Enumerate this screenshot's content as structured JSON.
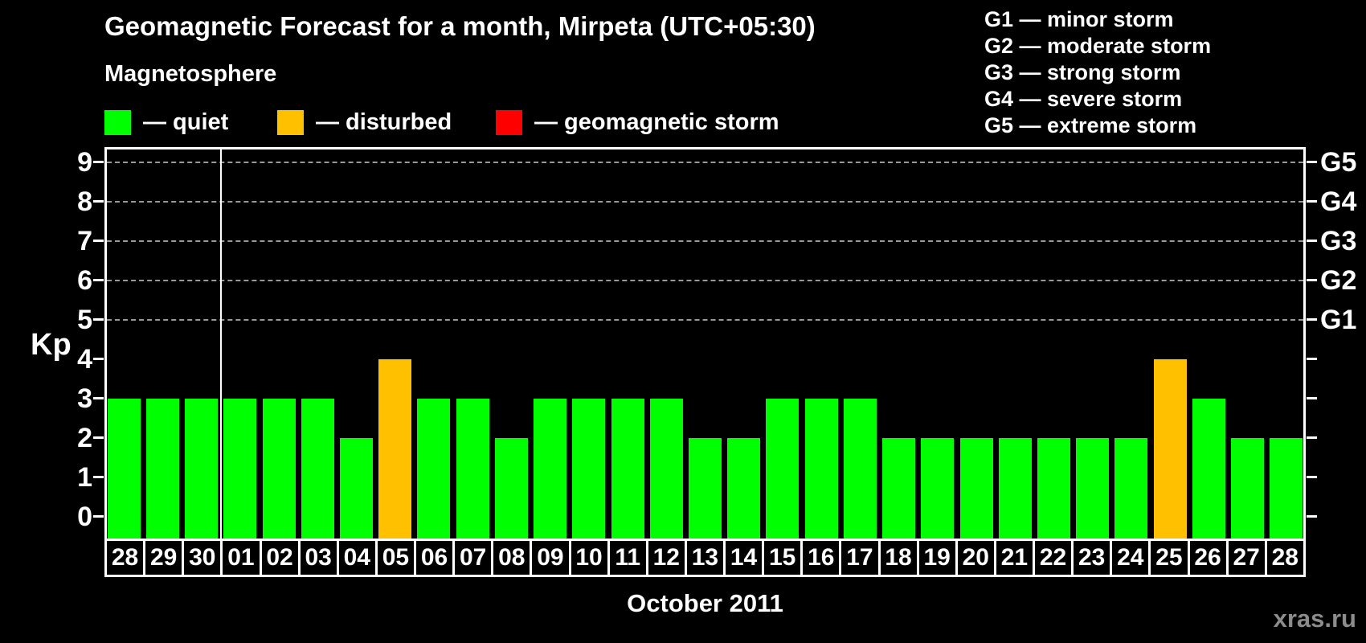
{
  "header": {
    "title": "Geomagnetic Forecast for a month, Mirpeta (UTC+05:30)",
    "subtitle": "Magnetosphere"
  },
  "legend": {
    "items": [
      {
        "name": "quiet",
        "label": "— quiet",
        "color": "#00ff00"
      },
      {
        "name": "disturbed",
        "label": "— disturbed",
        "color": "#ffc000"
      },
      {
        "name": "storm",
        "label": "— geomagnetic storm",
        "color": "#ff0000"
      }
    ]
  },
  "g_scale_legend": [
    "G1 — minor storm",
    "G2 — moderate storm",
    "G3 — strong storm",
    "G4 — severe storm",
    "G5 — extreme storm"
  ],
  "watermark": "xras.ru",
  "chart_data": {
    "type": "bar",
    "title": "Geomagnetic Forecast for a month, Mirpeta (UTC+05:30)",
    "xlabel": "October 2011",
    "ylabel": "Kp",
    "ylim": [
      0,
      9
    ],
    "yticks": [
      0,
      1,
      2,
      3,
      4,
      5,
      6,
      7,
      8,
      9
    ],
    "gridlines_at_kp": [
      5,
      6,
      7,
      8,
      9
    ],
    "grid": "dashed",
    "right_axis_labels": [
      {
        "kp": 5,
        "label": "G1"
      },
      {
        "kp": 6,
        "label": "G2"
      },
      {
        "kp": 7,
        "label": "G3"
      },
      {
        "kp": 8,
        "label": "G4"
      },
      {
        "kp": 9,
        "label": "G5"
      }
    ],
    "month_separator_after_index": 3,
    "categories": [
      "28",
      "29",
      "30",
      "01",
      "02",
      "03",
      "04",
      "05",
      "06",
      "07",
      "08",
      "09",
      "10",
      "11",
      "12",
      "13",
      "14",
      "15",
      "16",
      "17",
      "18",
      "19",
      "20",
      "21",
      "22",
      "23",
      "24",
      "25",
      "26",
      "27",
      "28"
    ],
    "values": [
      3,
      3,
      3,
      3,
      3,
      3,
      2,
      4,
      3,
      3,
      2,
      3,
      3,
      3,
      3,
      2,
      2,
      3,
      3,
      3,
      2,
      2,
      2,
      2,
      2,
      2,
      2,
      4,
      3,
      2,
      2
    ],
    "statuses": [
      "quiet",
      "quiet",
      "quiet",
      "quiet",
      "quiet",
      "quiet",
      "quiet",
      "disturbed",
      "quiet",
      "quiet",
      "quiet",
      "quiet",
      "quiet",
      "quiet",
      "quiet",
      "quiet",
      "quiet",
      "quiet",
      "quiet",
      "quiet",
      "quiet",
      "quiet",
      "quiet",
      "quiet",
      "quiet",
      "quiet",
      "quiet",
      "disturbed",
      "quiet",
      "quiet",
      "quiet"
    ],
    "colors": {
      "quiet": "#00ff00",
      "disturbed": "#ffc000",
      "storm": "#ff0000",
      "grid": "#999999",
      "axis": "#ffffff"
    }
  }
}
